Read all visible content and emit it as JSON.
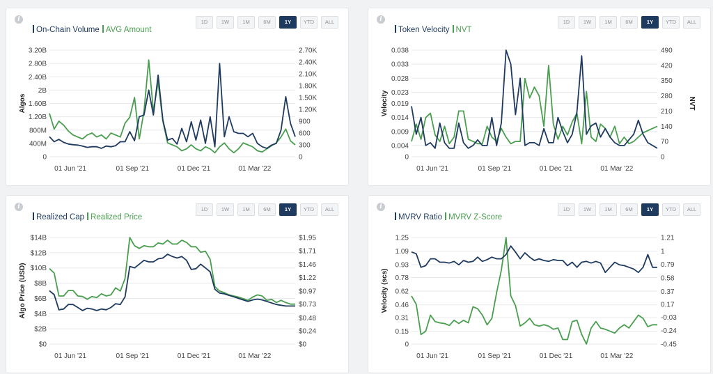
{
  "timeframes": [
    "1D",
    "1W",
    "1M",
    "6M",
    "1Y",
    "YTD",
    "ALL"
  ],
  "active_timeframe": "1Y",
  "colors": {
    "primary": "#1f3a5f",
    "secondary": "#4a9e4f",
    "grid": "#e6e8eb"
  },
  "info_icon": "info-icon",
  "chart_data": [
    {
      "type": "line",
      "title": "",
      "legend": [
        "On-Chain Volume",
        "AVG Amount"
      ],
      "ylabel": "Algos",
      "y2label": "",
      "x": [
        "2021-05-01",
        "2021-05-08",
        "2021-05-15",
        "2021-05-22",
        "2021-05-29",
        "2021-06-05",
        "2021-06-12",
        "2021-06-19",
        "2021-06-26",
        "2021-07-03",
        "2021-07-10",
        "2021-07-17",
        "2021-07-24",
        "2021-07-31",
        "2021-08-07",
        "2021-08-14",
        "2021-08-21",
        "2021-08-28",
        "2021-09-04",
        "2021-09-11",
        "2021-09-18",
        "2021-09-25",
        "2021-10-02",
        "2021-10-09",
        "2021-10-16",
        "2021-10-23",
        "2021-10-30",
        "2021-11-06",
        "2021-11-13",
        "2021-11-20",
        "2021-11-27",
        "2021-12-04",
        "2021-12-11",
        "2021-12-18",
        "2021-12-25",
        "2022-01-01",
        "2022-01-08",
        "2022-01-15",
        "2022-01-22",
        "2022-01-29",
        "2022-02-05",
        "2022-02-12",
        "2022-02-19",
        "2022-02-26",
        "2022-03-05",
        "2022-03-12",
        "2022-03-19",
        "2022-03-26",
        "2022-04-02",
        "2022-04-09",
        "2022-04-16",
        "2022-04-23",
        "2022-04-30"
      ],
      "x_tick_labels": [
        "01 Jun '21",
        "01 Sep '21",
        "01 Dec '21",
        "01 Mar '22"
      ],
      "x_tick_dates": [
        "2021-06-01",
        "2021-09-01",
        "2021-12-01",
        "2022-03-01"
      ],
      "ylim": [
        0,
        3200000000
      ],
      "y_ticks": [
        0,
        400000000,
        800000000,
        1200000000,
        1600000000,
        2000000000,
        2400000000,
        2800000000,
        3200000000
      ],
      "y_tick_labels": [
        "0",
        "400M",
        "800M",
        "1.20B",
        "1.60B",
        "2B",
        "2.40B",
        "2.80B",
        "3.20B"
      ],
      "y2lim": [
        0,
        2700
      ],
      "y2_ticks": [
        0,
        300,
        600,
        900,
        1200,
        1500,
        1800,
        2100,
        2400,
        2700
      ],
      "y2_tick_labels": [
        "0",
        "300",
        "600",
        "900",
        "1.20K",
        "1.50K",
        "1.80K",
        "2.10K",
        "2.40K",
        "2.70K"
      ],
      "series": [
        {
          "name": "On-Chain Volume",
          "axis": "left",
          "values": [
            600000000,
            450000000,
            520000000,
            430000000,
            380000000,
            360000000,
            350000000,
            320000000,
            280000000,
            300000000,
            300000000,
            250000000,
            320000000,
            300000000,
            330000000,
            450000000,
            450000000,
            750000000,
            480000000,
            1200000000,
            1250000000,
            2000000000,
            1250000000,
            2450000000,
            1100000000,
            500000000,
            550000000,
            380000000,
            850000000,
            450000000,
            1050000000,
            500000000,
            1100000000,
            400000000,
            1200000000,
            300000000,
            2800000000,
            600000000,
            1200000000,
            750000000,
            700000000,
            700000000,
            600000000,
            700000000,
            400000000,
            300000000,
            250000000,
            350000000,
            400000000,
            800000000,
            1800000000,
            1000000000,
            600000000
          ]
        },
        {
          "name": "AVG Amount",
          "axis": "right",
          "values": [
            1100,
            700,
            900,
            800,
            650,
            550,
            500,
            450,
            550,
            600,
            500,
            550,
            450,
            600,
            550,
            500,
            850,
            1000,
            1500,
            450,
            1150,
            2450,
            1150,
            1900,
            900,
            350,
            300,
            250,
            150,
            200,
            300,
            200,
            150,
            250,
            200,
            100,
            250,
            350,
            200,
            100,
            200,
            350,
            300,
            250,
            150,
            120,
            200,
            280,
            350,
            500,
            700,
            400,
            300
          ]
        }
      ]
    },
    {
      "type": "line",
      "title": "",
      "legend": [
        "Token Velocity",
        "NVT"
      ],
      "ylabel": "Velocity",
      "y2label": "NVT",
      "x": [
        "2021-05-01",
        "2021-05-08",
        "2021-05-15",
        "2021-05-22",
        "2021-05-29",
        "2021-06-05",
        "2021-06-12",
        "2021-06-19",
        "2021-06-26",
        "2021-07-03",
        "2021-07-10",
        "2021-07-17",
        "2021-07-24",
        "2021-07-31",
        "2021-08-07",
        "2021-08-14",
        "2021-08-21",
        "2021-08-28",
        "2021-09-04",
        "2021-09-11",
        "2021-09-18",
        "2021-09-25",
        "2021-10-02",
        "2021-10-09",
        "2021-10-16",
        "2021-10-23",
        "2021-10-30",
        "2021-11-06",
        "2021-11-13",
        "2021-11-20",
        "2021-11-27",
        "2021-12-04",
        "2021-12-11",
        "2021-12-18",
        "2021-12-25",
        "2022-01-01",
        "2022-01-08",
        "2022-01-15",
        "2022-01-22",
        "2022-01-29",
        "2022-02-05",
        "2022-02-12",
        "2022-02-19",
        "2022-02-26",
        "2022-03-05",
        "2022-03-12",
        "2022-03-19",
        "2022-03-26",
        "2022-04-02",
        "2022-04-09",
        "2022-04-16",
        "2022-04-23",
        "2022-04-30"
      ],
      "x_tick_labels": [
        "01 Jun '21",
        "01 Sep '21",
        "01 Dec '21",
        "01 Mar '22"
      ],
      "x_tick_dates": [
        "2021-06-01",
        "2021-09-01",
        "2021-12-01",
        "2022-03-01"
      ],
      "ylim": [
        0,
        0.038
      ],
      "y_ticks": [
        0,
        0.004,
        0.009,
        0.014,
        0.019,
        0.023,
        0.028,
        0.033,
        0.038
      ],
      "y_tick_labels": [
        "0",
        "0.004",
        "0.009",
        "0.014",
        "0.019",
        "0.023",
        "0.028",
        "0.033",
        "0.038"
      ],
      "y2lim": [
        0,
        490
      ],
      "y2_ticks": [
        0,
        70,
        140,
        210,
        280,
        350,
        420,
        490
      ],
      "y2_tick_labels": [
        "0",
        "70",
        "140",
        "210",
        "280",
        "350",
        "420",
        "490"
      ],
      "series": [
        {
          "name": "Token Velocity",
          "axis": "left",
          "values": [
            0.018,
            0.008,
            0.014,
            0.004,
            0.005,
            0.003,
            0.012,
            0.005,
            0.003,
            0.003,
            0.012,
            0.005,
            0.003,
            0.004,
            0.006,
            0.004,
            0.004,
            0.014,
            0.004,
            0.012,
            0.038,
            0.033,
            0.015,
            0.028,
            0.004,
            0.005,
            0.005,
            0.004,
            0.01,
            0.005,
            0.005,
            0.014,
            0.009,
            0.005,
            0.008,
            0.016,
            0.036,
            0.008,
            0.011,
            0.012,
            0.007,
            0.01,
            0.007,
            0.005,
            0.004,
            0.004,
            0.006,
            0.008,
            0.013,
            0.008,
            0.005,
            0.004,
            0.003
          ]
        },
        {
          "name": "NVT",
          "axis": "right",
          "values": [
            70,
            150,
            80,
            180,
            200,
            100,
            70,
            140,
            60,
            90,
            210,
            210,
            80,
            70,
            60,
            60,
            140,
            90,
            70,
            130,
            90,
            60,
            70,
            70,
            360,
            270,
            320,
            280,
            140,
            420,
            150,
            80,
            140,
            100,
            160,
            200,
            60,
            300,
            90,
            70,
            150,
            130,
            90,
            140,
            60,
            90,
            60,
            70,
            90,
            110,
            120,
            130,
            140
          ]
        }
      ]
    },
    {
      "type": "line",
      "title": "",
      "legend": [
        "Realized Cap",
        "Realized Price"
      ],
      "ylabel": "Algo Price (USD)",
      "y2label": "",
      "x": [
        "2021-05-01",
        "2021-05-08",
        "2021-05-15",
        "2021-05-22",
        "2021-05-29",
        "2021-06-05",
        "2021-06-12",
        "2021-06-19",
        "2021-06-26",
        "2021-07-03",
        "2021-07-10",
        "2021-07-17",
        "2021-07-24",
        "2021-07-31",
        "2021-08-07",
        "2021-08-14",
        "2021-08-21",
        "2021-08-28",
        "2021-09-04",
        "2021-09-11",
        "2021-09-18",
        "2021-09-25",
        "2021-10-02",
        "2021-10-09",
        "2021-10-16",
        "2021-10-23",
        "2021-10-30",
        "2021-11-06",
        "2021-11-13",
        "2021-11-20",
        "2021-11-27",
        "2021-12-04",
        "2021-12-11",
        "2021-12-18",
        "2021-12-25",
        "2022-01-01",
        "2022-01-08",
        "2022-01-15",
        "2022-01-22",
        "2022-01-29",
        "2022-02-05",
        "2022-02-12",
        "2022-02-19",
        "2022-02-26",
        "2022-03-05",
        "2022-03-12",
        "2022-03-19",
        "2022-03-26",
        "2022-04-02",
        "2022-04-09",
        "2022-04-16",
        "2022-04-23",
        "2022-04-30"
      ],
      "x_tick_labels": [
        "01 Jun '21",
        "01 Sep '21",
        "01 Dec '21",
        "01 Mar '22"
      ],
      "x_tick_dates": [
        "2021-06-01",
        "2021-09-01",
        "2021-12-01",
        "2022-03-01"
      ],
      "ylim": [
        0,
        14
      ],
      "y_ticks": [
        0,
        2,
        4,
        6,
        8,
        10,
        12,
        14
      ],
      "y_tick_labels": [
        "$0",
        "$2B",
        "$4B",
        "$6B",
        "$8B",
        "$10B",
        "$12B",
        "$14B"
      ],
      "y2lim": [
        0,
        1.95
      ],
      "y2_ticks": [
        0,
        0.24,
        0.48,
        0.73,
        0.97,
        1.22,
        1.46,
        1.71,
        1.95
      ],
      "y2_tick_labels": [
        "$0",
        "$0.24",
        "$0.48",
        "$0.73",
        "$0.97",
        "$1.22",
        "$1.46",
        "$1.71",
        "$1.95"
      ],
      "series": [
        {
          "name": "Realized Cap",
          "axis": "left",
          "values": [
            7,
            6.5,
            4.5,
            4.6,
            5.2,
            5.2,
            4.8,
            4.4,
            4.7,
            4.6,
            4.4,
            4.6,
            4.5,
            4.8,
            5.3,
            5.2,
            6.2,
            10.2,
            10.0,
            10.5,
            11.0,
            10.8,
            10.8,
            11.2,
            11.3,
            11.8,
            11.5,
            11.3,
            11.5,
            11.0,
            9.8,
            9.9,
            10.5,
            10.0,
            9.5,
            7.2,
            6.7,
            6.6,
            6.4,
            6.2,
            6.0,
            5.8,
            5.6,
            5.8,
            5.9,
            5.8,
            5.6,
            5.4,
            5.2,
            5.1,
            5.0,
            5.0,
            5.0
          ]
        },
        {
          "name": "Realized Price",
          "axis": "right",
          "values": [
            1.38,
            1.3,
            0.88,
            0.88,
            0.98,
            0.98,
            0.88,
            0.87,
            0.82,
            0.87,
            0.85,
            0.92,
            0.88,
            0.9,
            1.03,
            0.97,
            1.2,
            1.95,
            1.8,
            1.75,
            1.8,
            1.78,
            1.78,
            1.85,
            1.83,
            1.9,
            1.83,
            1.83,
            1.9,
            1.86,
            1.78,
            1.78,
            1.68,
            1.7,
            1.55,
            1.05,
            0.97,
            0.94,
            0.9,
            0.88,
            0.86,
            0.83,
            0.8,
            0.86,
            0.9,
            0.88,
            0.8,
            0.82,
            0.76,
            0.8,
            0.76,
            0.73,
            0.73
          ]
        }
      ]
    },
    {
      "type": "line",
      "title": "",
      "legend": [
        "MVRV Ratio",
        "MVRV Z-Score"
      ],
      "ylabel": "Velocity (scs)",
      "y2label": "",
      "x": [
        "2021-05-01",
        "2021-05-08",
        "2021-05-15",
        "2021-05-22",
        "2021-05-29",
        "2021-06-05",
        "2021-06-12",
        "2021-06-19",
        "2021-06-26",
        "2021-07-03",
        "2021-07-10",
        "2021-07-17",
        "2021-07-24",
        "2021-07-31",
        "2021-08-07",
        "2021-08-14",
        "2021-08-21",
        "2021-08-28",
        "2021-09-04",
        "2021-09-11",
        "2021-09-18",
        "2021-09-25",
        "2021-10-02",
        "2021-10-09",
        "2021-10-16",
        "2021-10-23",
        "2021-10-30",
        "2021-11-06",
        "2021-11-13",
        "2021-11-20",
        "2021-11-27",
        "2021-12-04",
        "2021-12-11",
        "2021-12-18",
        "2021-12-25",
        "2022-01-01",
        "2022-01-08",
        "2022-01-15",
        "2022-01-22",
        "2022-01-29",
        "2022-02-05",
        "2022-02-12",
        "2022-02-19",
        "2022-02-26",
        "2022-03-05",
        "2022-03-12",
        "2022-03-19",
        "2022-03-26",
        "2022-04-02",
        "2022-04-09",
        "2022-04-16",
        "2022-04-23",
        "2022-04-30"
      ],
      "x_tick_labels": [
        "01 Jun '21",
        "01 Sep '21",
        "01 Dec '21",
        "01 Mar '22"
      ],
      "x_tick_dates": [
        "2021-06-01",
        "2021-09-01",
        "2021-12-01",
        "2022-03-01"
      ],
      "ylim": [
        0,
        1.25
      ],
      "y_ticks": [
        0,
        0.15,
        0.31,
        0.46,
        0.62,
        0.78,
        0.93,
        1.09,
        1.25
      ],
      "y_tick_labels": [
        "0",
        "0.15",
        "0.31",
        "0.46",
        "0.62",
        "0.78",
        "0.93",
        "1.09",
        "1.25"
      ],
      "y2lim": [
        -0.45,
        1.21
      ],
      "y2_ticks": [
        -0.45,
        -0.24,
        -0.03,
        0.17,
        0.37,
        0.58,
        0.79,
        1,
        1.21
      ],
      "y2_tick_labels": [
        "-0.45",
        "-0.24",
        "-0.03",
        "0.17",
        "0.37",
        "0.58",
        "0.79",
        "1",
        "1.21"
      ],
      "series": [
        {
          "name": "MVRV Ratio",
          "axis": "left",
          "values": [
            1.08,
            1.06,
            0.9,
            0.92,
            1.0,
            1.0,
            0.96,
            0.96,
            0.95,
            0.97,
            0.93,
            0.98,
            0.96,
            0.97,
            1.02,
            0.97,
            0.99,
            1.02,
            1.0,
            1.0,
            1.05,
            1.15,
            1.08,
            1.0,
            1.07,
            1.02,
            0.98,
            1.0,
            0.98,
            0.97,
            0.99,
            0.98,
            0.98,
            0.92,
            0.96,
            0.9,
            0.96,
            0.97,
            0.95,
            0.97,
            0.95,
            0.84,
            0.9,
            0.96,
            0.93,
            0.92,
            0.9,
            0.88,
            0.84,
            0.9,
            1.05,
            0.9,
            0.9
          ]
        },
        {
          "name": "MVRV Z-Score",
          "axis": "right",
          "values": [
            0.3,
            0.17,
            -0.3,
            -0.25,
            0.0,
            -0.1,
            -0.12,
            -0.13,
            -0.16,
            -0.08,
            -0.13,
            -0.08,
            -0.12,
            0.13,
            0.1,
            0.0,
            -0.15,
            -0.05,
            0.35,
            0.7,
            1.21,
            0.3,
            0.15,
            -0.17,
            -0.12,
            -0.05,
            -0.15,
            -0.17,
            -0.15,
            -0.17,
            -0.22,
            -0.2,
            -0.38,
            -0.38,
            -0.1,
            -0.08,
            -0.3,
            -0.45,
            -0.2,
            -0.1,
            -0.2,
            -0.22,
            -0.25,
            -0.28,
            -0.2,
            -0.15,
            -0.2,
            -0.1,
            0.0,
            -0.05,
            -0.18,
            -0.15,
            -0.15
          ]
        }
      ]
    }
  ]
}
